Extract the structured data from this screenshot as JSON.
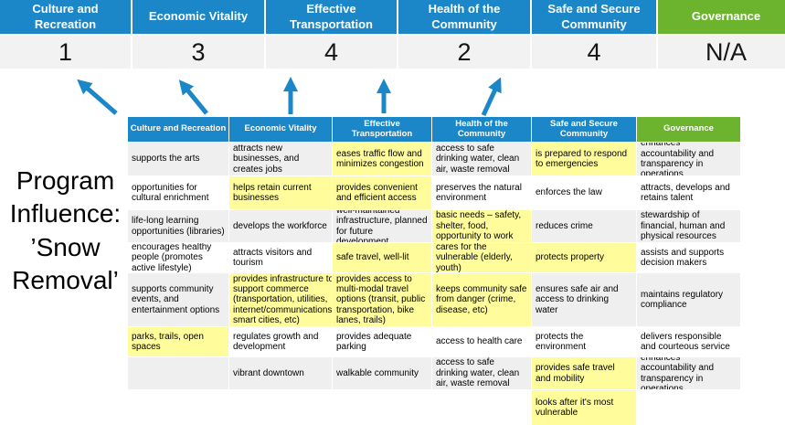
{
  "title": "Program Influence: ’Snow Removal’",
  "colors": {
    "header_blue": "#1B87C9",
    "header_green": "#6CB42D",
    "highlight_yellow": "#FFFC9C",
    "row_gray": "#EFEFEF",
    "score_row_bg": "#F2F2F2",
    "arrow_blue": "#1B87C9"
  },
  "arrows": {
    "count": 5,
    "direction": "up"
  },
  "summary": {
    "columns": [
      {
        "label": "Culture and Recreation",
        "score": "1",
        "accent": "blue"
      },
      {
        "label": "Economic Vitality",
        "score": "3",
        "accent": "blue"
      },
      {
        "label": "Effective Transportation",
        "score": "4",
        "accent": "blue"
      },
      {
        "label": "Health of the Community",
        "score": "2",
        "accent": "blue"
      },
      {
        "label": "Safe and Secure Community",
        "score": "4",
        "accent": "blue"
      },
      {
        "label": "Governance",
        "score": "N/A",
        "accent": "green"
      }
    ]
  },
  "matrix": {
    "headers": [
      {
        "label": "Culture and Recreation",
        "accent": "blue"
      },
      {
        "label": "Economic Vitality",
        "accent": "blue"
      },
      {
        "label": "Effective Transportation",
        "accent": "blue"
      },
      {
        "label": "Health of the Community",
        "accent": "blue"
      },
      {
        "label": "Safe and Secure Community",
        "accent": "blue"
      },
      {
        "label": "Governance",
        "accent": "green"
      }
    ],
    "rows": [
      {
        "cells": [
          {
            "text": "supports the arts",
            "highlight": false
          },
          {
            "text": "attracts new businesses, and creates jobs",
            "highlight": false
          },
          {
            "text": "eases traffic flow and minimizes congestion",
            "highlight": true
          },
          {
            "text": "access to safe drinking water, clean air, waste removal",
            "highlight": false
          },
          {
            "text": "is prepared to respond to emergencies",
            "highlight": true
          },
          {
            "text": "enhances accountability and transparency in operations",
            "highlight": false
          }
        ]
      },
      {
        "cells": [
          {
            "text": "opportunities for cultural enrichment",
            "highlight": false
          },
          {
            "text": "helps retain current businesses",
            "highlight": true
          },
          {
            "text": "provides convenient and efficient access",
            "highlight": true
          },
          {
            "text": "preserves the natural environment",
            "highlight": false
          },
          {
            "text": "enforces the law",
            "highlight": false
          },
          {
            "text": "attracts, develops and retains talent",
            "highlight": false
          }
        ]
      },
      {
        "cells": [
          {
            "text": "life-long learning opportunities (libraries)",
            "highlight": false
          },
          {
            "text": "develops the workforce",
            "highlight": false
          },
          {
            "text": "well-maintained infrastructure, planned for future development",
            "highlight": false
          },
          {
            "text": "basic needs – safety, shelter, food, opportunity to work",
            "highlight": true
          },
          {
            "text": "reduces crime",
            "highlight": false
          },
          {
            "text": "stewardship of financial, human and physical resources",
            "highlight": false
          }
        ]
      },
      {
        "cells": [
          {
            "text": "encourages healthy people (promotes active lifestyle)",
            "highlight": false
          },
          {
            "text": "attracts visitors and tourism",
            "highlight": false
          },
          {
            "text": "safe travel, well-lit",
            "highlight": true
          },
          {
            "text": "cares for the vulnerable (elderly, youth)",
            "highlight": true
          },
          {
            "text": "protects property",
            "highlight": true
          },
          {
            "text": "assists and supports decision makers",
            "highlight": false
          }
        ]
      },
      {
        "cells": [
          {
            "text": "supports community events, and entertainment options",
            "highlight": false
          },
          {
            "text": "provides infrastructure to support commerce (transportation, utilities, internet/communications, smart cities, etc)",
            "highlight": true
          },
          {
            "text": "provides access to multi-modal travel options (transit, public transportation, bike lanes, trails)",
            "highlight": true
          },
          {
            "text": "keeps community safe from danger (crime, disease, etc)",
            "highlight": true
          },
          {
            "text": "ensures safe air and access to drinking water",
            "highlight": false
          },
          {
            "text": "maintains regulatory compliance",
            "highlight": false
          }
        ]
      },
      {
        "cells": [
          {
            "text": "parks, trails, open spaces",
            "highlight": true
          },
          {
            "text": "regulates growth and development",
            "highlight": false
          },
          {
            "text": "provides adequate parking",
            "highlight": false
          },
          {
            "text": "access to health care",
            "highlight": false
          },
          {
            "text": "protects the environment",
            "highlight": false
          },
          {
            "text": "delivers responsible and courteous service",
            "highlight": false
          }
        ]
      },
      {
        "cells": [
          {
            "text": "",
            "highlight": false
          },
          {
            "text": "vibrant downtown",
            "highlight": false
          },
          {
            "text": "walkable community",
            "highlight": false
          },
          {
            "text": "access to safe drinking water, clean air, waste removal",
            "highlight": false
          },
          {
            "text": "provides safe travel and mobility",
            "highlight": true
          },
          {
            "text": "enhances accountability and transparency in operations",
            "highlight": false
          }
        ]
      },
      {
        "cells": [
          {
            "text": "",
            "highlight": false
          },
          {
            "text": "",
            "highlight": false
          },
          {
            "text": "",
            "highlight": false
          },
          {
            "text": "",
            "highlight": false
          },
          {
            "text": "looks after it's most vulnerable",
            "highlight": true
          },
          {
            "text": "",
            "highlight": false
          }
        ]
      }
    ]
  }
}
